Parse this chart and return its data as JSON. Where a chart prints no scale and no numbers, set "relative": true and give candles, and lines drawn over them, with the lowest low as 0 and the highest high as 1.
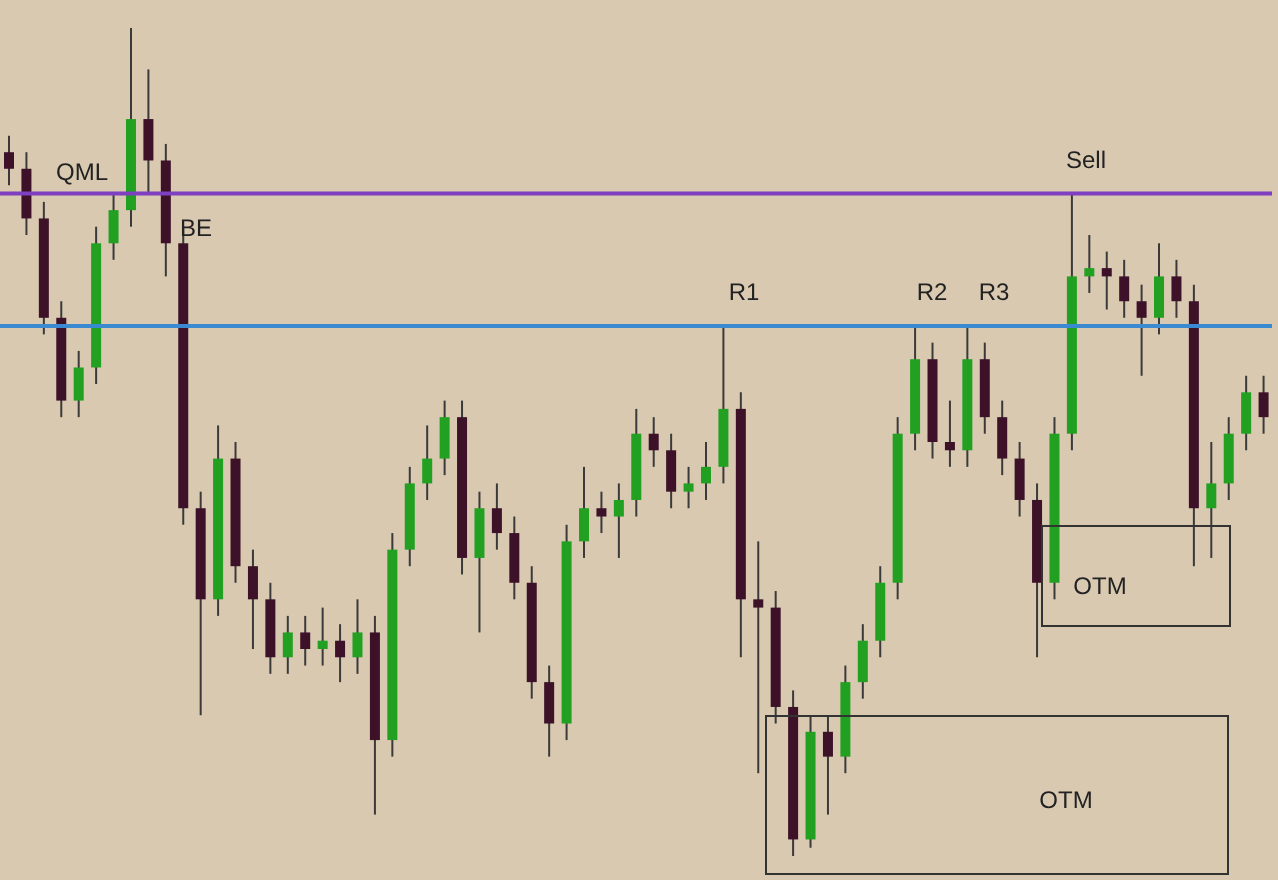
{
  "chart_data": {
    "type": "candlestick",
    "relative": true,
    "tick_labels": false,
    "colors": [
      "#3d1228",
      "#3d1228",
      "#3d1228",
      "#3d1228",
      "#22a022",
      "#22a022",
      "#22a022",
      "#22a022",
      "#3d1228",
      "#3d1228",
      "#3d1228",
      "#3d1228",
      "#22a022",
      "#3d1228",
      "#3d1228",
      "#3d1228",
      "#22a022",
      "#3d1228",
      "#22a022",
      "#3d1228",
      "#22a022",
      "#3d1228",
      "#22a022",
      "#22a022",
      "#22a022",
      "#22a022",
      "#3d1228",
      "#22a022",
      "#3d1228",
      "#3d1228",
      "#3d1228",
      "#3d1228",
      "#22a022",
      "#22a022",
      "#3d1228",
      "#22a022",
      "#22a022",
      "#3d1228",
      "#3d1228",
      "#22a022",
      "#22a022",
      "#22a022",
      "#3d1228",
      "#3d1228",
      "#3d1228",
      "#3d1228",
      "#22a022",
      "#3d1228",
      "#22a022",
      "#22a022",
      "#22a022",
      "#22a022",
      "#22a022",
      "#3d1228",
      "#3d1228",
      "#22a022",
      "#3d1228",
      "#3d1228",
      "#3d1228",
      "#3d1228",
      "#22a022",
      "#22a022",
      "#22a022",
      "#3d1228",
      "#3d1228",
      "#3d1228",
      "#22a022",
      "#3d1228",
      "#3d1228",
      "#22a022",
      "#22a022",
      "#22a022",
      "#3d1228"
    ],
    "categories": [
      null,
      null,
      null,
      null,
      null,
      null,
      null,
      null,
      null,
      null,
      null,
      null,
      null,
      null,
      null,
      null,
      null,
      null,
      null,
      null,
      null,
      null,
      null,
      null,
      null,
      null,
      null,
      null,
      null,
      null,
      null,
      null,
      null,
      null,
      null,
      null,
      null,
      null,
      null,
      null,
      null,
      null,
      null,
      null,
      null,
      null,
      null,
      null,
      null,
      null,
      null,
      null,
      null,
      null,
      null,
      null,
      null,
      null,
      null,
      null,
      null,
      null,
      null,
      null,
      null,
      null,
      null,
      null,
      null,
      null,
      null,
      null,
      null
    ],
    "ohlc": [
      [
        0.85,
        0.87,
        0.81,
        0.83
      ],
      [
        0.83,
        0.85,
        0.75,
        0.77
      ],
      [
        0.77,
        0.79,
        0.63,
        0.65
      ],
      [
        0.65,
        0.67,
        0.53,
        0.55
      ],
      [
        0.55,
        0.61,
        0.53,
        0.59
      ],
      [
        0.59,
        0.76,
        0.57,
        0.74
      ],
      [
        0.74,
        0.8,
        0.72,
        0.78
      ],
      [
        0.78,
        1,
        0.76,
        0.89
      ],
      [
        0.89,
        0.95,
        0.8,
        0.84
      ],
      [
        0.84,
        0.86,
        0.7,
        0.74
      ],
      [
        0.74,
        0.76,
        0.4,
        0.42
      ],
      [
        0.42,
        0.44,
        0.17,
        0.31
      ],
      [
        0.31,
        0.52,
        0.29,
        0.48
      ],
      [
        0.48,
        0.5,
        0.33,
        0.35
      ],
      [
        0.35,
        0.37,
        0.25,
        0.31
      ],
      [
        0.31,
        0.33,
        0.22,
        0.24
      ],
      [
        0.24,
        0.29,
        0.22,
        0.27
      ],
      [
        0.27,
        0.29,
        0.23,
        0.25
      ],
      [
        0.25,
        0.3,
        0.23,
        0.26
      ],
      [
        0.26,
        0.28,
        0.21,
        0.24
      ],
      [
        0.24,
        0.31,
        0.22,
        0.27
      ],
      [
        0.27,
        0.29,
        0.05,
        0.14
      ],
      [
        0.14,
        0.39,
        0.12,
        0.37
      ],
      [
        0.37,
        0.47,
        0.35,
        0.45
      ],
      [
        0.45,
        0.52,
        0.43,
        0.48
      ],
      [
        0.48,
        0.55,
        0.46,
        0.53
      ],
      [
        0.53,
        0.55,
        0.34,
        0.36
      ],
      [
        0.36,
        0.44,
        0.27,
        0.42
      ],
      [
        0.42,
        0.45,
        0.37,
        0.39
      ],
      [
        0.39,
        0.41,
        0.31,
        0.33
      ],
      [
        0.33,
        0.35,
        0.19,
        0.21
      ],
      [
        0.21,
        0.23,
        0.12,
        0.16
      ],
      [
        0.16,
        0.4,
        0.14,
        0.38
      ],
      [
        0.38,
        0.47,
        0.36,
        0.42
      ],
      [
        0.42,
        0.44,
        0.39,
        0.41
      ],
      [
        0.41,
        0.45,
        0.36,
        0.43
      ],
      [
        0.43,
        0.54,
        0.41,
        0.51
      ],
      [
        0.51,
        0.53,
        0.47,
        0.49
      ],
      [
        0.49,
        0.51,
        0.42,
        0.44
      ],
      [
        0.44,
        0.47,
        0.42,
        0.45
      ],
      [
        0.45,
        0.5,
        0.43,
        0.47
      ],
      [
        0.47,
        0.64,
        0.45,
        0.54
      ],
      [
        0.54,
        0.56,
        0.24,
        0.31
      ],
      [
        0.31,
        0.38,
        0.1,
        0.3
      ],
      [
        0.3,
        0.32,
        0.16,
        0.18
      ],
      [
        0.18,
        0.2,
        0,
        0.02
      ],
      [
        0.02,
        0.17,
        0.01,
        0.15
      ],
      [
        0.15,
        0.17,
        0.05,
        0.12
      ],
      [
        0.12,
        0.23,
        0.1,
        0.21
      ],
      [
        0.21,
        0.28,
        0.19,
        0.26
      ],
      [
        0.26,
        0.35,
        0.24,
        0.33
      ],
      [
        0.33,
        0.53,
        0.31,
        0.51
      ],
      [
        0.51,
        0.64,
        0.49,
        0.6
      ],
      [
        0.6,
        0.62,
        0.48,
        0.5
      ],
      [
        0.5,
        0.55,
        0.47,
        0.49
      ],
      [
        0.49,
        0.64,
        0.47,
        0.6
      ],
      [
        0.6,
        0.62,
        0.51,
        0.53
      ],
      [
        0.53,
        0.55,
        0.46,
        0.48
      ],
      [
        0.48,
        0.5,
        0.41,
        0.43
      ],
      [
        0.43,
        0.45,
        0.24,
        0.33
      ],
      [
        0.33,
        0.53,
        0.31,
        0.51
      ],
      [
        0.51,
        0.8,
        0.49,
        0.7
      ],
      [
        0.7,
        0.75,
        0.68,
        0.71
      ],
      [
        0.71,
        0.73,
        0.66,
        0.7
      ],
      [
        0.7,
        0.72,
        0.65,
        0.67
      ],
      [
        0.67,
        0.69,
        0.58,
        0.65
      ],
      [
        0.65,
        0.74,
        0.63,
        0.7
      ],
      [
        0.7,
        0.72,
        0.65,
        0.67
      ],
      [
        0.67,
        0.69,
        0.35,
        0.42
      ],
      [
        0.42,
        0.5,
        0.36,
        0.45
      ],
      [
        0.45,
        0.53,
        0.43,
        0.51
      ],
      [
        0.51,
        0.58,
        0.49,
        0.56
      ],
      [
        0.56,
        0.58,
        0.51,
        0.53
      ]
    ],
    "ref_lines": [
      {
        "axis": "y",
        "value": 0.8,
        "color": "#7e3fc0"
      },
      {
        "axis": "y",
        "value": 0.64,
        "color": "#3a8ad2"
      }
    ],
    "annotations": [
      "QML",
      "BE",
      "R1",
      "R2",
      "R3",
      "Sell",
      "OTM",
      "OTM"
    ]
  }
}
